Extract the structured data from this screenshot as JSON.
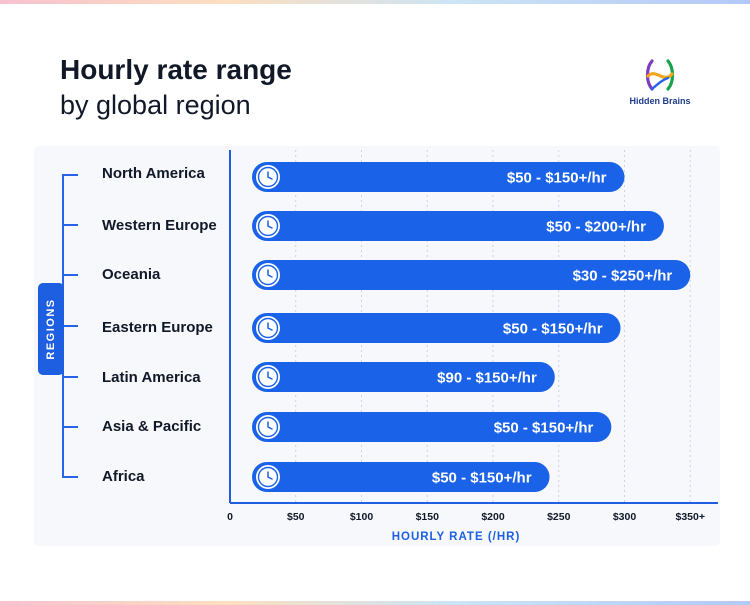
{
  "header": {
    "title": "Hourly rate range",
    "subtitle": "by global region"
  },
  "logo": {
    "text": "Hidden Brains",
    "colors": [
      "#7b3fbf",
      "#f4a51c",
      "#16a34a",
      "#2563eb"
    ]
  },
  "axis_badge": {
    "label": "REGIONS"
  },
  "colors": {
    "bar": "#1a62e8",
    "bracket": "#2563eb",
    "panel": "#f6f8fc",
    "grid": "#c9d3e6",
    "axis_title": "#1d5fe0"
  },
  "icons": {
    "bar_start": "clock-icon"
  },
  "chart_data": {
    "type": "bar",
    "orientation": "horizontal",
    "categories": [
      "North America",
      "Western Europe",
      "Oceania",
      "Eastern Europe",
      "Latin America",
      "Asia & Pacific",
      "Africa"
    ],
    "ranges": [
      [
        50,
        150
      ],
      [
        50,
        200
      ],
      [
        30,
        250
      ],
      [
        50,
        150
      ],
      [
        90,
        150
      ],
      [
        50,
        150
      ],
      [
        50,
        150
      ]
    ],
    "bar_end_values": [
      300,
      330,
      350,
      297,
      247,
      290,
      243
    ],
    "labels": [
      "$50 - $150+/hr",
      "$50 - $200+/hr",
      "$30 - $250+/hr",
      "$50 - $150+/hr",
      "$90 - $150+/hr",
      "$50 - $150+/hr",
      "$50 - $150+/hr"
    ],
    "xticks": [
      "0",
      "$50",
      "$100",
      "$150",
      "$200",
      "$250",
      "$300",
      "$350+"
    ],
    "xtick_values": [
      0,
      50,
      100,
      150,
      200,
      250,
      300,
      350
    ],
    "xlim": [
      0,
      365
    ],
    "xlabel": "HOURLY RATE (/HR)",
    "ylabel": "REGIONS",
    "grid": true
  }
}
